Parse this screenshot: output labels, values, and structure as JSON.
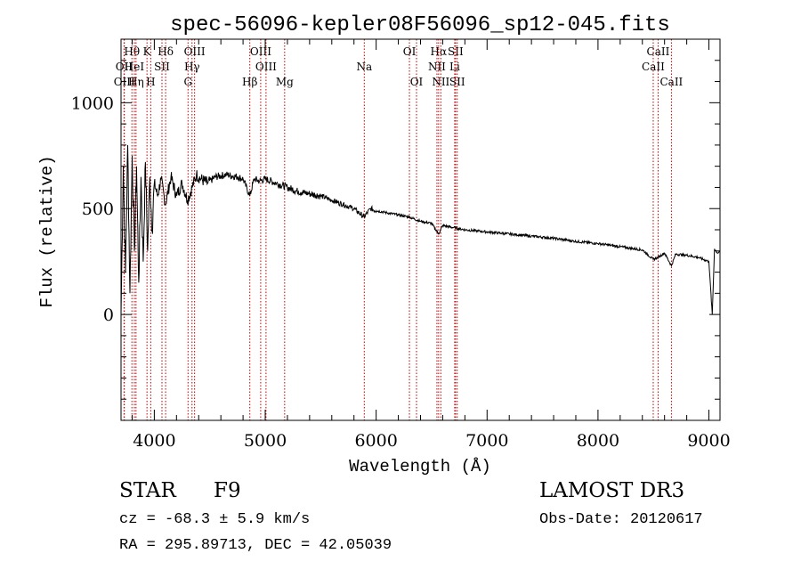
{
  "chart_data": {
    "type": "line",
    "title": "spec-56096-kepler08F56096_sp12-045.fits",
    "xlabel": "Wavelength (Å)",
    "ylabel": "Flux (relative)",
    "xlim": [
      3700,
      9100
    ],
    "ylim": [
      -500,
      1300
    ],
    "x_ticks": [
      4000,
      5000,
      6000,
      7000,
      8000,
      9000
    ],
    "x_tick_labels": [
      "4000",
      "5000",
      "6000",
      "7000",
      "8000",
      "9000"
    ],
    "y_ticks": [
      0,
      500,
      1000
    ],
    "y_tick_labels": [
      "0",
      "500",
      "1000"
    ],
    "series": [
      {
        "name": "spectrum",
        "x": [
          3700,
          3720,
          3740,
          3760,
          3780,
          3800,
          3820,
          3840,
          3860,
          3880,
          3900,
          3920,
          3940,
          3960,
          3980,
          4000,
          4030,
          4060,
          4100,
          4150,
          4200,
          4250,
          4300,
          4340,
          4380,
          4420,
          4480,
          4550,
          4650,
          4750,
          4800,
          4861,
          4900,
          4950,
          5000,
          5100,
          5200,
          5300,
          5400,
          5500,
          5600,
          5700,
          5800,
          5890,
          5950,
          6000,
          6100,
          6200,
          6300,
          6400,
          6500,
          6563,
          6600,
          6700,
          6800,
          6900,
          7000,
          7200,
          7400,
          7600,
          7800,
          8000,
          8200,
          8400,
          8498,
          8542,
          8600,
          8662,
          8700,
          8800,
          8900,
          9000,
          9030,
          9050,
          9080,
          9100
        ],
        "y": [
          0,
          700,
          200,
          800,
          100,
          750,
          300,
          700,
          150,
          650,
          250,
          720,
          300,
          650,
          400,
          620,
          560,
          640,
          520,
          650,
          560,
          620,
          540,
          600,
          660,
          640,
          620,
          650,
          660,
          650,
          640,
          560,
          640,
          630,
          640,
          620,
          600,
          580,
          570,
          560,
          540,
          520,
          500,
          460,
          500,
          490,
          480,
          470,
          460,
          440,
          430,
          380,
          420,
          410,
          400,
          395,
          390,
          380,
          370,
          360,
          345,
          335,
          320,
          305,
          260,
          270,
          290,
          230,
          285,
          280,
          270,
          250,
          0,
          310,
          290,
          300
        ]
      }
    ],
    "line_markers": [
      {
        "label": "Hθ",
        "wavelength": 3798,
        "row": 1
      },
      {
        "label": "OII",
        "wavelength": 3727,
        "row": 2
      },
      {
        "label": "OIII",
        "wavelength": 3730,
        "row": 3
      },
      {
        "label": "HeI",
        "wavelength": 3820,
        "row": 2
      },
      {
        "label": "Hη",
        "wavelength": 3835,
        "row": 3
      },
      {
        "label": "K",
        "wavelength": 3934,
        "row": 1
      },
      {
        "label": "SII",
        "wavelength": 4069,
        "row": 2
      },
      {
        "label": "H",
        "wavelength": 3968,
        "row": 3
      },
      {
        "label": "Hδ",
        "wavelength": 4102,
        "row": 1
      },
      {
        "label": "OIII",
        "wavelength": 4363,
        "row": 1
      },
      {
        "label": "Hγ",
        "wavelength": 4340,
        "row": 2
      },
      {
        "label": "G",
        "wavelength": 4304,
        "row": 3
      },
      {
        "label": "OIII",
        "wavelength": 4959,
        "row": 1
      },
      {
        "label": "OIII",
        "wavelength": 5007,
        "row": 2
      },
      {
        "label": "Hβ",
        "wavelength": 4861,
        "row": 3
      },
      {
        "label": "Mg",
        "wavelength": 5175,
        "row": 3
      },
      {
        "label": "Na",
        "wavelength": 5893,
        "row": 2
      },
      {
        "label": "OI",
        "wavelength": 6300,
        "row": 1
      },
      {
        "label": "OI",
        "wavelength": 6364,
        "row": 3
      },
      {
        "label": "Hα",
        "wavelength": 6563,
        "row": 1
      },
      {
        "label": "SII",
        "wavelength": 6716,
        "row": 1
      },
      {
        "label": "NII",
        "wavelength": 6548,
        "row": 2
      },
      {
        "label": "Li",
        "wavelength": 6708,
        "row": 2
      },
      {
        "label": "NII",
        "wavelength": 6583,
        "row": 3
      },
      {
        "label": "SII",
        "wavelength": 6731,
        "row": 3
      },
      {
        "label": "CaII",
        "wavelength": 8542,
        "row": 1
      },
      {
        "label": "CaII",
        "wavelength": 8498,
        "row": 2
      },
      {
        "label": "CaII",
        "wavelength": 8662,
        "row": 3
      }
    ]
  },
  "info": {
    "object_class": "STAR",
    "subclass": "F9",
    "survey": "LAMOST DR3",
    "redshift": "cz = -68.3 ± 5.9 km/s",
    "obs_date": "Obs-Date: 20120617",
    "coords": "RA = 295.89713, DEC =  42.05039"
  },
  "colors": {
    "spectrum": "#000000",
    "marker_lines": "#c00000",
    "axes": "#000000"
  }
}
